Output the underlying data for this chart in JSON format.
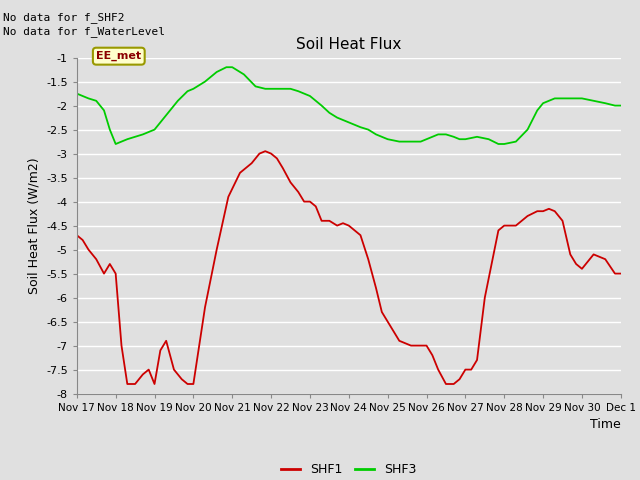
{
  "title": "Soil Heat Flux",
  "ylabel": "Soil Heat Flux (W/m2)",
  "xlabel": "Time",
  "ylim": [
    -8.0,
    -1.0
  ],
  "yticks": [
    -8.0,
    -7.5,
    -7.0,
    -6.5,
    -6.0,
    -5.5,
    -5.0,
    -4.5,
    -4.0,
    -3.5,
    -3.0,
    -2.5,
    -2.0,
    -1.5,
    -1.0
  ],
  "xtick_labels": [
    "Nov 17",
    "Nov 18",
    "Nov 19",
    "Nov 20",
    "Nov 21",
    "Nov 22",
    "Nov 23",
    "Nov 24",
    "Nov 25",
    "Nov 26",
    "Nov 27",
    "Nov 28",
    "Nov 29",
    "Nov 30",
    "Dec 1"
  ],
  "no_data_text1": "No data for f_SHF2",
  "no_data_text2": "No data for f_WaterLevel",
  "annotation_box": "EE_met",
  "background_color": "#e0e0e0",
  "plot_bg_color": "#e0e0e0",
  "grid_color": "white",
  "shf1_color": "#cc0000",
  "shf3_color": "#00cc00",
  "shf1_x": [
    0,
    0.15,
    0.3,
    0.5,
    0.7,
    0.85,
    1.0,
    1.15,
    1.3,
    1.5,
    1.7,
    1.85,
    2.0,
    2.15,
    2.3,
    2.5,
    2.7,
    2.85,
    3.0,
    3.3,
    3.6,
    3.9,
    4.2,
    4.5,
    4.7,
    4.85,
    5.0,
    5.15,
    5.3,
    5.5,
    5.7,
    5.85,
    6.0,
    6.15,
    6.3,
    6.5,
    6.7,
    6.85,
    7.0,
    7.15,
    7.3,
    7.5,
    7.7,
    7.85,
    8.0,
    8.3,
    8.6,
    8.85,
    9.0,
    9.15,
    9.3,
    9.5,
    9.7,
    9.85,
    10.0,
    10.15,
    10.3,
    10.5,
    10.7,
    10.85,
    11.0,
    11.3,
    11.6,
    11.85,
    12.0,
    12.15,
    12.3,
    12.5,
    12.7,
    12.85,
    13.0,
    13.3,
    13.6,
    13.85,
    14.0
  ],
  "shf1_y": [
    -4.7,
    -4.8,
    -5.0,
    -5.2,
    -5.5,
    -5.3,
    -5.5,
    -7.0,
    -7.8,
    -7.8,
    -7.6,
    -7.5,
    -7.8,
    -7.1,
    -6.9,
    -7.5,
    -7.7,
    -7.8,
    -7.8,
    -6.2,
    -5.0,
    -3.9,
    -3.4,
    -3.2,
    -3.0,
    -2.95,
    -3.0,
    -3.1,
    -3.3,
    -3.6,
    -3.8,
    -4.0,
    -4.0,
    -4.1,
    -4.4,
    -4.4,
    -4.5,
    -4.45,
    -4.5,
    -4.6,
    -4.7,
    -5.2,
    -5.8,
    -6.3,
    -6.5,
    -6.9,
    -7.0,
    -7.0,
    -7.0,
    -7.2,
    -7.5,
    -7.8,
    -7.8,
    -7.7,
    -7.5,
    -7.5,
    -7.3,
    -6.0,
    -5.2,
    -4.6,
    -4.5,
    -4.5,
    -4.3,
    -4.2,
    -4.2,
    -4.15,
    -4.2,
    -4.4,
    -5.1,
    -5.3,
    -5.4,
    -5.1,
    -5.2,
    -5.5,
    -5.5
  ],
  "shf3_x": [
    0,
    0.15,
    0.3,
    0.5,
    0.7,
    0.85,
    1.0,
    1.15,
    1.3,
    1.5,
    1.7,
    1.85,
    2.0,
    2.3,
    2.6,
    2.85,
    3.0,
    3.3,
    3.6,
    3.85,
    4.0,
    4.3,
    4.6,
    4.85,
    5.0,
    5.15,
    5.3,
    5.5,
    5.7,
    5.85,
    6.0,
    6.15,
    6.3,
    6.5,
    6.7,
    6.85,
    7.0,
    7.15,
    7.3,
    7.5,
    7.7,
    7.85,
    8.0,
    8.3,
    8.6,
    8.85,
    9.0,
    9.15,
    9.3,
    9.5,
    9.7,
    9.85,
    10.0,
    10.3,
    10.6,
    10.85,
    11.0,
    11.3,
    11.6,
    11.85,
    12.0,
    12.15,
    12.3,
    12.5,
    12.7,
    12.85,
    13.0,
    13.3,
    13.6,
    13.85,
    14.0
  ],
  "shf3_y": [
    -1.75,
    -1.8,
    -1.85,
    -1.9,
    -2.1,
    -2.5,
    -2.8,
    -2.75,
    -2.7,
    -2.65,
    -2.6,
    -2.55,
    -2.5,
    -2.2,
    -1.9,
    -1.7,
    -1.65,
    -1.5,
    -1.3,
    -1.2,
    -1.2,
    -1.35,
    -1.6,
    -1.65,
    -1.65,
    -1.65,
    -1.65,
    -1.65,
    -1.7,
    -1.75,
    -1.8,
    -1.9,
    -2.0,
    -2.15,
    -2.25,
    -2.3,
    -2.35,
    -2.4,
    -2.45,
    -2.5,
    -2.6,
    -2.65,
    -2.7,
    -2.75,
    -2.75,
    -2.75,
    -2.7,
    -2.65,
    -2.6,
    -2.6,
    -2.65,
    -2.7,
    -2.7,
    -2.65,
    -2.7,
    -2.8,
    -2.8,
    -2.75,
    -2.5,
    -2.1,
    -1.95,
    -1.9,
    -1.85,
    -1.85,
    -1.85,
    -1.85,
    -1.85,
    -1.9,
    -1.95,
    -2.0,
    -2.0
  ]
}
